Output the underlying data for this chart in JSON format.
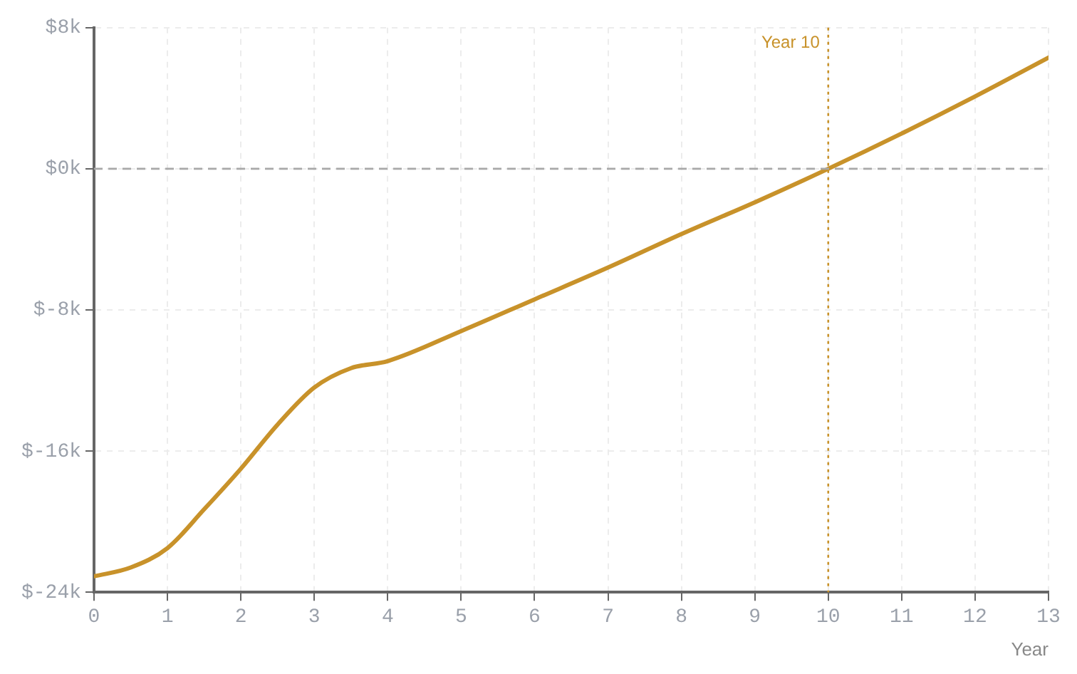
{
  "chart_data": {
    "type": "line",
    "xlabel": "Year",
    "x": [
      0,
      0.5,
      1,
      1.5,
      2,
      2.5,
      3,
      3.5,
      4,
      5,
      6,
      7,
      8,
      9,
      10,
      11,
      12,
      13
    ],
    "series": [
      {
        "color": "#c8922a",
        "values": [
          -23.1,
          -22.6,
          -21.5,
          -19.3,
          -17.0,
          -14.5,
          -12.4,
          -11.3,
          -10.9,
          -9.2,
          -7.4,
          -5.6,
          -3.7,
          -1.9,
          0,
          2.0,
          4.1,
          6.3
        ]
      }
    ],
    "xlim": [
      0,
      13
    ],
    "xticks": [
      0,
      1,
      2,
      3,
      4,
      5,
      6,
      7,
      8,
      9,
      10,
      11,
      12,
      13
    ],
    "ylim": [
      -24,
      8
    ],
    "yticks": [
      {
        "value": -24,
        "label": "$-24k"
      },
      {
        "value": -16,
        "label": "$-16k"
      },
      {
        "value": -8,
        "label": "$-8k"
      },
      {
        "value": 0,
        "label": "$0k"
      },
      {
        "value": 8,
        "label": "$8k"
      }
    ],
    "ref_lines": [
      {
        "axis": "y",
        "value": 0,
        "color": "#a8a8a8",
        "line_style": "dashed"
      },
      {
        "axis": "x",
        "value": 10,
        "label": "Year 10",
        "color": "#c8922a",
        "line_style": "dotted"
      }
    ],
    "grid": true,
    "legend": false,
    "marker": "none",
    "line_style": "solid"
  }
}
